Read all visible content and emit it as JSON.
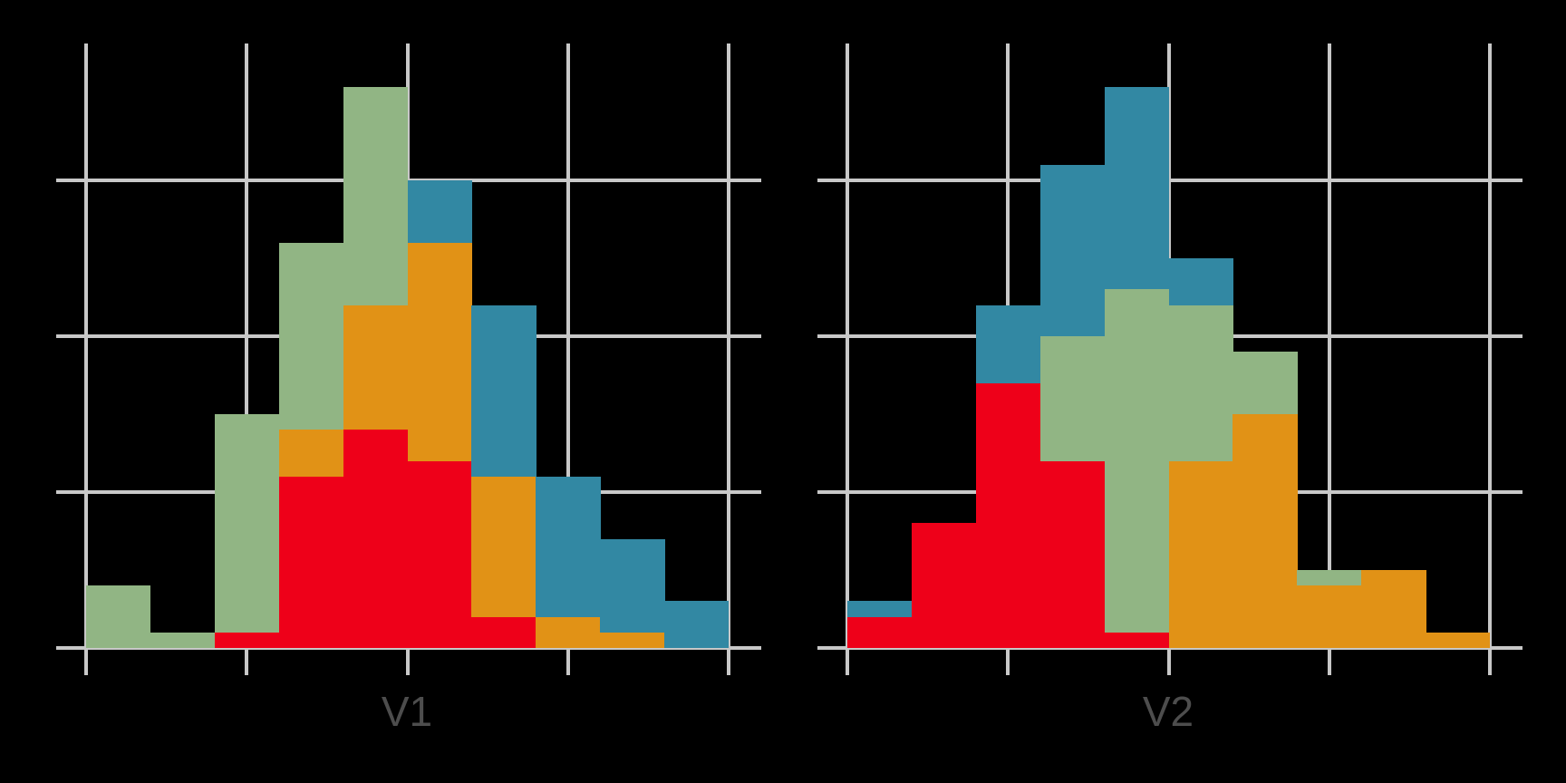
{
  "chart_data": [
    {
      "type": "bar",
      "stacked": true,
      "title": "",
      "xlabel": "V1",
      "ylabel": "",
      "bins": 10,
      "categories": [
        "1",
        "2",
        "3",
        "4",
        "5",
        "6",
        "7",
        "8",
        "9",
        "10"
      ],
      "series": [
        {
          "name": "red",
          "color": "#EE0019",
          "values": [
            0,
            0,
            1,
            11,
            14,
            12,
            2,
            0,
            0,
            0
          ]
        },
        {
          "name": "orange",
          "color": "#E19216",
          "values": [
            0,
            0,
            0,
            3,
            8,
            14,
            9,
            2,
            1,
            0
          ]
        },
        {
          "name": "green",
          "color": "#91B584",
          "values": [
            4,
            1,
            14,
            12,
            14,
            0,
            0,
            0,
            0,
            0
          ]
        },
        {
          "name": "blue",
          "color": "#3288A3",
          "values": [
            0,
            0,
            0,
            0,
            0,
            4,
            11,
            9,
            6,
            3
          ]
        }
      ],
      "ylim": [
        0,
        36
      ],
      "y_gridlines": [
        0,
        10,
        20,
        30
      ],
      "grid": true,
      "tick_labels_visible": false,
      "legend": "none"
    },
    {
      "type": "bar",
      "stacked": true,
      "title": "",
      "xlabel": "V2",
      "ylabel": "",
      "bins": 10,
      "categories": [
        "1",
        "2",
        "3",
        "4",
        "5",
        "6",
        "7",
        "8",
        "9",
        "10"
      ],
      "series": [
        {
          "name": "red",
          "color": "#EE0019",
          "values": [
            2,
            8,
            17,
            12,
            1,
            0,
            0,
            0,
            0,
            0
          ]
        },
        {
          "name": "orange",
          "color": "#E19216",
          "values": [
            0,
            0,
            0,
            0,
            0,
            12,
            15,
            4,
            5,
            1
          ]
        },
        {
          "name": "green",
          "color": "#91B584",
          "values": [
            0,
            0,
            0,
            8,
            22,
            10,
            4,
            1,
            0,
            0
          ]
        },
        {
          "name": "blue",
          "color": "#3288A3",
          "values": [
            1,
            0,
            5,
            11,
            13,
            3,
            0,
            0,
            0,
            0
          ]
        }
      ],
      "ylim": [
        0,
        36
      ],
      "y_gridlines": [
        0,
        10,
        20,
        30
      ],
      "grid": true,
      "tick_labels_visible": false,
      "legend": "none"
    }
  ],
  "panels": [
    {
      "label": "V1"
    },
    {
      "label": "V2"
    }
  ],
  "colors": {
    "background": "#000000",
    "grid": "#C8C8C8",
    "axis_label": "#4D4D4D"
  }
}
